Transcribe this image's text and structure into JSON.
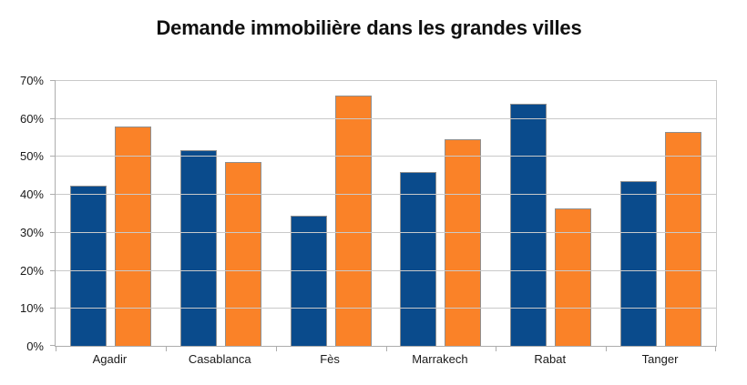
{
  "chart_data": {
    "type": "bar",
    "title": "Demande immobilière dans les grandes villes",
    "categories": [
      "Agadir",
      "Casablanca",
      "Fès",
      "Marrakech",
      "Rabat",
      "Tanger"
    ],
    "series": [
      {
        "color": "#0A4B8C",
        "values": [
          42.3,
          51.6,
          34.3,
          45.7,
          63.8,
          43.5
        ]
      },
      {
        "color": "#FA8228",
        "values": [
          57.8,
          48.4,
          65.9,
          54.5,
          36.2,
          56.4
        ]
      }
    ],
    "xlabel": "",
    "ylabel": "",
    "ylim": [
      0,
      70
    ],
    "y_tick_step": 10,
    "y_tick_labels": [
      "0%",
      "10%",
      "20%",
      "30%",
      "40%",
      "50%",
      "60%",
      "70%"
    ],
    "grid": true,
    "legend": "none"
  },
  "colors": {
    "background": "#FFFFFF",
    "gridline": "#C9C9C9",
    "axis": "#ADADAD",
    "bar_border": "#8F8F8F",
    "title_text": "#101010",
    "tick_text": "#1A1A1A",
    "series1": "#0A4B8C",
    "series2": "#FA8228"
  }
}
